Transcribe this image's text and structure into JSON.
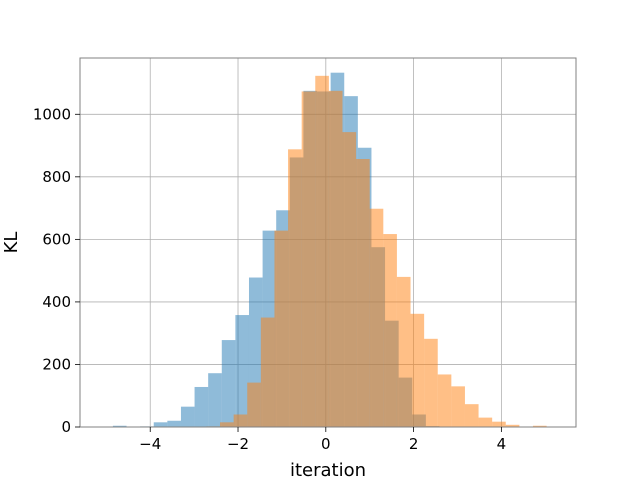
{
  "chart_data": {
    "type": "bar",
    "xlabel": "iteration",
    "ylabel": "KL",
    "xlim": [
      -5.6,
      5.7
    ],
    "ylim": [
      0,
      1180
    ],
    "grid": true,
    "xticks": [
      -4,
      -2,
      0,
      2,
      4
    ],
    "xtick_labels": [
      "−4",
      "−2",
      "0",
      "2",
      "4"
    ],
    "yticks": [
      0,
      200,
      400,
      600,
      800,
      1000
    ],
    "ytick_labels": [
      "0",
      "200",
      "400",
      "600",
      "800",
      "1000"
    ],
    "series": [
      {
        "color": "#1f77b4",
        "opacity": 0.5,
        "bin_edges": [
          -4.85,
          -4.54,
          -4.23,
          -3.92,
          -3.61,
          -3.3,
          -2.99,
          -2.68,
          -2.37,
          -2.06,
          -1.75,
          -1.44,
          -1.13,
          -0.82,
          -0.51,
          -0.2,
          0.11,
          0.42,
          0.73,
          1.04,
          1.35,
          1.66,
          1.97,
          2.28,
          2.59
        ],
        "counts": [
          4,
          0,
          2,
          15,
          20,
          65,
          128,
          172,
          278,
          358,
          478,
          628,
          693,
          862,
          1075,
          1073,
          1133,
          1058,
          893,
          575,
          340,
          158,
          40,
          3
        ]
      },
      {
        "color": "#ff7f0e",
        "opacity": 0.5,
        "bin_edges": [
          -2.72,
          -2.41,
          -2.1,
          -1.79,
          -1.48,
          -1.17,
          -0.86,
          -0.55,
          -0.24,
          0.07,
          0.38,
          0.69,
          1.0,
          1.31,
          1.62,
          1.93,
          2.24,
          2.55,
          2.86,
          3.17,
          3.48,
          3.79,
          4.1,
          4.41,
          4.72,
          5.03
        ],
        "counts": [
          2,
          15,
          40,
          142,
          350,
          628,
          888,
          1073,
          1123,
          1075,
          943,
          857,
          698,
          617,
          480,
          362,
          282,
          168,
          130,
          73,
          30,
          17,
          7,
          0,
          4
        ]
      }
    ]
  }
}
